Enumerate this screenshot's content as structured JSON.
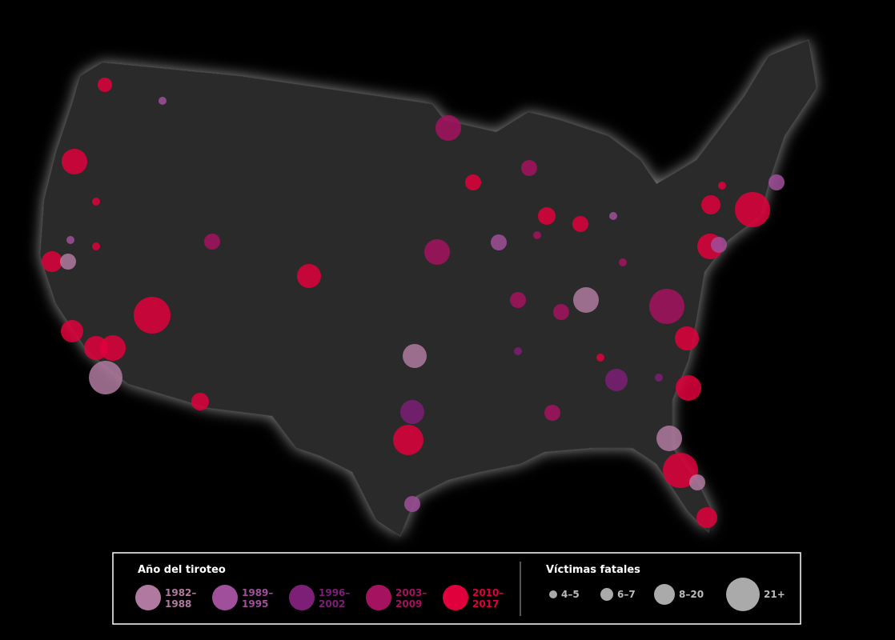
{
  "legend": {
    "year": {
      "title": "Año del tiroteo",
      "items": [
        [
          "1982–",
          "1988"
        ],
        [
          "1989–",
          "1995"
        ],
        [
          "1996–",
          "2002"
        ],
        [
          "2003–",
          "2009"
        ],
        [
          "2010–",
          "2017"
        ]
      ]
    },
    "victims": {
      "title": "Víctimas fatales",
      "items": [
        "4–5",
        "6–7",
        "8–20",
        "21+"
      ]
    }
  }
}
